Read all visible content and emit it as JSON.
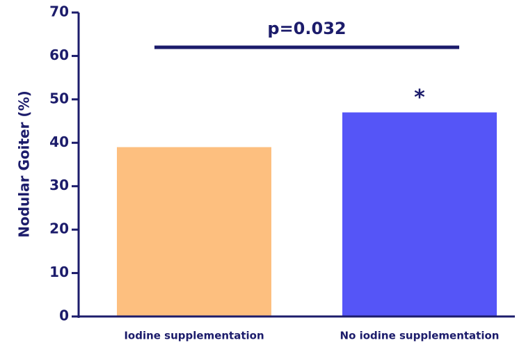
{
  "chart_data": {
    "type": "bar",
    "y_label": "Nodular Goiter (%)",
    "categories": [
      "Iodine supplementation",
      "No iodine supplementation"
    ],
    "values": [
      39,
      47
    ],
    "colors": [
      "#fdbf7f",
      "#5555f7"
    ],
    "ylim": [
      0,
      70
    ],
    "yticks": [
      0,
      10,
      20,
      30,
      40,
      50,
      60,
      70
    ],
    "annotations": {
      "p_value": "p=0.032",
      "significance": "*"
    }
  }
}
